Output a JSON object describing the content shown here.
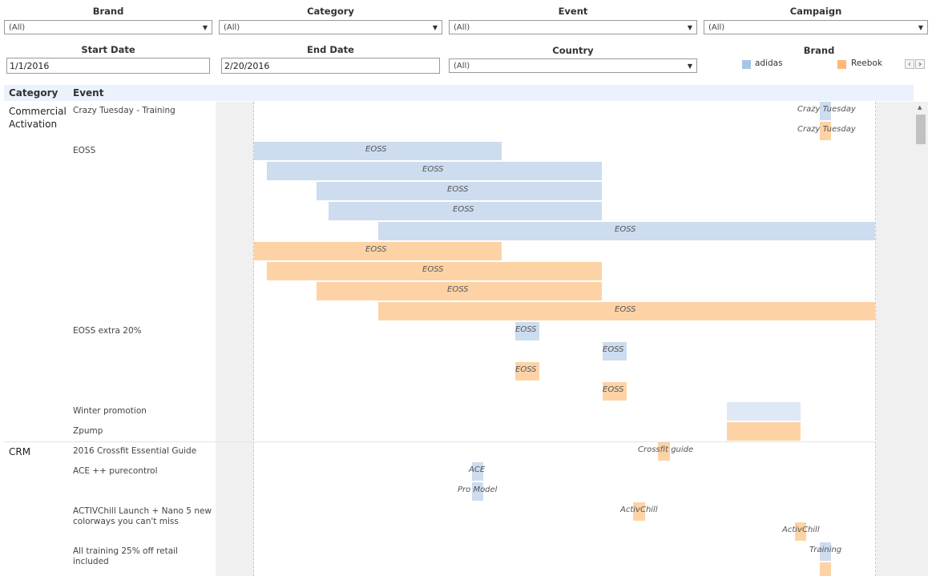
{
  "filters": {
    "brand": {
      "label": "Brand",
      "value": "(All)"
    },
    "category": {
      "label": "Category",
      "value": "(All)"
    },
    "event": {
      "label": "Event",
      "value": "(All)"
    },
    "campaign": {
      "label": "Campaign",
      "value": "(All)"
    },
    "start_date": {
      "label": "Start Date",
      "value": "1/1/2016"
    },
    "end_date": {
      "label": "End Date",
      "value": "2/20/2016"
    },
    "country": {
      "label": "Country",
      "value": "(All)"
    }
  },
  "legend": {
    "title": "Brand",
    "items": [
      {
        "name": "adidas",
        "color": "#a9c4e5"
      },
      {
        "name": "Reebok",
        "color": "#fdb877"
      }
    ]
  },
  "table": {
    "col_category": "Category",
    "col_event": "Event",
    "categories": [
      "Commercial Activation",
      "CRM"
    ],
    "events": [
      "Crazy Tuesday - Training",
      "EOSS",
      "EOSS extra 20%",
      "Winter promotion",
      "Zpump",
      "2016 Crossfit Essential Guide",
      "ACE ++ purecontrol",
      "ACTIVChill Launch + Nano 5 new colorways you can't miss",
      "All training 25% off retail included"
    ]
  },
  "bars": [
    {
      "brand": "adidas",
      "label": "Crazy Tuesday"
    },
    {
      "brand": "Reebok",
      "label": "Crazy Tuesday"
    },
    {
      "brand": "adidas",
      "label": "EOSS"
    },
    {
      "brand": "adidas",
      "label": "EOSS"
    },
    {
      "brand": "adidas",
      "label": "EOSS"
    },
    {
      "brand": "adidas",
      "label": "EOSS"
    },
    {
      "brand": "adidas",
      "label": "EOSS"
    },
    {
      "brand": "Reebok",
      "label": "EOSS"
    },
    {
      "brand": "Reebok",
      "label": "EOSS"
    },
    {
      "brand": "Reebok",
      "label": "EOSS"
    },
    {
      "brand": "Reebok",
      "label": "EOSS"
    },
    {
      "brand": "adidas",
      "label": "EOSS"
    },
    {
      "brand": "adidas",
      "label": "EOSS"
    },
    {
      "brand": "Reebok",
      "label": "EOSS"
    },
    {
      "brand": "Reebok",
      "label": "EOSS"
    },
    {
      "brand": "adidas",
      "label": ""
    },
    {
      "brand": "Reebok",
      "label": ""
    },
    {
      "brand": "Reebok",
      "label": "Crossfit guide"
    },
    {
      "brand": "adidas",
      "label": "ACE"
    },
    {
      "brand": "adidas",
      "label": "Pro Model"
    },
    {
      "brand": "Reebok",
      "label": "ActivChill"
    },
    {
      "brand": "Reebok",
      "label": "ActivChill"
    },
    {
      "brand": "adidas",
      "label": "Training"
    },
    {
      "brand": "Reebok",
      "label": ""
    }
  ]
}
